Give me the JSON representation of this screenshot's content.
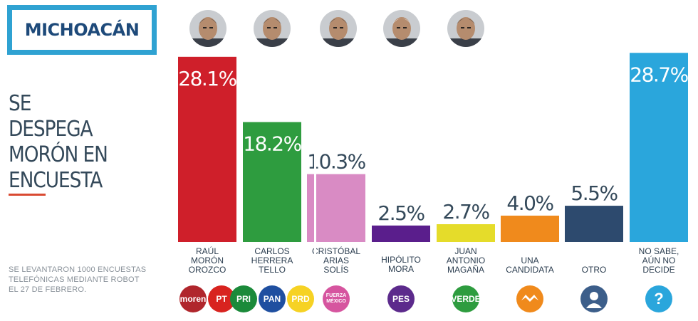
{
  "header": {
    "state": "MICHOACÁN"
  },
  "headline": "SE DESPEGA MORÓN EN ENCUESTA",
  "footnote": "SE LEVANTARON 1000 ENCUESTAS TELEFÓNICAS MEDIANTE ROBOT EL 27 DE FEBRERO.",
  "colors": {
    "accent": "#2fa2d2",
    "title": "#1e4a7a",
    "rule": "#d94a32",
    "value_text": "#34495a",
    "label_text": "#2c3e50"
  },
  "chart_data": {
    "type": "bar",
    "categories": [
      "RAÚL MORÓN OROZCO",
      "CARLOS HERRERA TELLO",
      "CRISTÓBAL ARIAS SOLÍS",
      "HIPÓLITO MORA",
      "JUAN ANTONIO MAGAÑA",
      "UNA CANDIDATA",
      "OTRO",
      "NO SABE, AÚN NO DECIDE"
    ],
    "category_lines": [
      [
        "RAÚL",
        "MORÓN",
        "OROZCO"
      ],
      [
        "CARLOS",
        "HERRERA",
        "TELLO"
      ],
      [
        "CRISTÓBAL",
        "ARIAS",
        "SOLÍS"
      ],
      [
        "HIPÓLITO",
        "MORA"
      ],
      [
        "JUAN",
        "ANTONIO",
        "MAGAÑA"
      ],
      [
        "UNA",
        "CANDIDATA"
      ],
      [
        "OTRO"
      ],
      [
        "NO SABE,",
        "AÚN NO",
        "DECIDE"
      ]
    ],
    "values": [
      28.1,
      18.2,
      10.3,
      2.5,
      2.7,
      4.0,
      5.5,
      28.7
    ],
    "value_labels": [
      "28.1%",
      "18.2%",
      "10.3%",
      "2.5%",
      "2.7%",
      "4.0%",
      "5.5%",
      "28.7%"
    ],
    "bar_colors": [
      "#cf1f2a",
      "#2e9c3f",
      "#d98bc4",
      "#5a1e8c",
      "#e5dc2a",
      "#f08a1c",
      "#2d4a6e",
      "#2aa6dc"
    ],
    "ylim": [
      0,
      30
    ],
    "title": "",
    "xlabel": "",
    "ylabel": ""
  },
  "party_logos": [
    {
      "icon": "morena-pt-logo",
      "texts": [
        "moren",
        "PT"
      ],
      "colors": [
        "#b0262c",
        "#d8231f"
      ]
    },
    {
      "icon": "pri-pan-prd-logo",
      "texts": [
        "PRI",
        "PAN",
        "PRD"
      ],
      "colors": [
        "#1b8a3a",
        "#1f4fa0",
        "#f6d224"
      ]
    },
    {
      "icon": "fuerza-mexico-logo",
      "texts": [
        "FUERZA MÉXICO"
      ],
      "colors": [
        "#d6559f"
      ]
    },
    {
      "icon": "pes-logo",
      "texts": [
        "PES"
      ],
      "colors": [
        "#5c2a8c"
      ]
    },
    {
      "icon": "verde-logo",
      "texts": [
        "VERDE"
      ],
      "colors": [
        "#2e9c3f"
      ]
    },
    {
      "icon": "movimiento-ciudadano-logo",
      "texts": [],
      "colors": [
        "#f08a1c"
      ]
    },
    {
      "icon": "person-silhouette-icon",
      "texts": [],
      "colors": [
        "#3c5e8a"
      ]
    },
    {
      "icon": "question-mark-icon",
      "texts": [
        "?"
      ],
      "colors": [
        "#2aa6dc"
      ]
    }
  ]
}
